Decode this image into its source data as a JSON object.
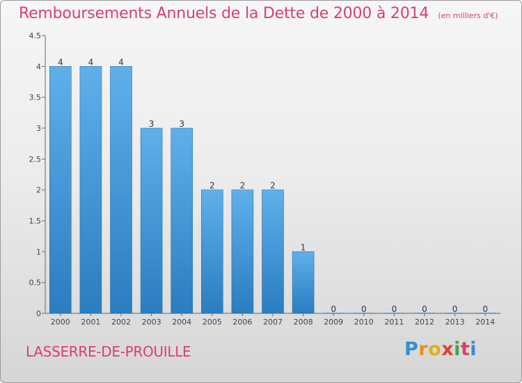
{
  "chart_data": {
    "type": "bar",
    "title": "Remboursements Annuels de la Dette de 2000 à 2014",
    "subtitle": "(en milliers d'€)",
    "categories": [
      "2000",
      "2001",
      "2002",
      "2003",
      "2004",
      "2005",
      "2006",
      "2007",
      "2008",
      "2009",
      "2010",
      "2011",
      "2012",
      "2013",
      "2014"
    ],
    "values": [
      4,
      4,
      4,
      3,
      3,
      2,
      2,
      2,
      1,
      0,
      0,
      0,
      0,
      0,
      0
    ],
    "data_labels": [
      "4",
      "4",
      "4",
      "3",
      "3",
      "2",
      "2",
      "2",
      "1",
      "0",
      "0",
      "0",
      "0",
      "0",
      "0"
    ],
    "ylim": [
      0,
      4.5
    ],
    "yticks": [
      0,
      0.5,
      1,
      1.5,
      2,
      2.5,
      3,
      3.5,
      4,
      4.5
    ],
    "ytick_labels": [
      "0",
      "0.5",
      "1",
      "1.5",
      "2",
      "2.5",
      "3",
      "3.5",
      "4",
      "4.5"
    ],
    "xlabel": "",
    "ylabel": "",
    "bar_color": "#4a9fdf",
    "grid": false
  },
  "footer": {
    "commune": "LASSERRE-DE-PROUILLE",
    "brand": [
      "P",
      "r",
      "o",
      "x",
      "i",
      "t",
      "i"
    ],
    "brand_colors": [
      "#2f8fd6",
      "#f08a1c",
      "#d9b21a",
      "#e0403a",
      "#3aa84b",
      "#d9406b",
      "#2f8fd6"
    ]
  },
  "colors": {
    "title": "#d9406b",
    "axis": "#555555"
  }
}
